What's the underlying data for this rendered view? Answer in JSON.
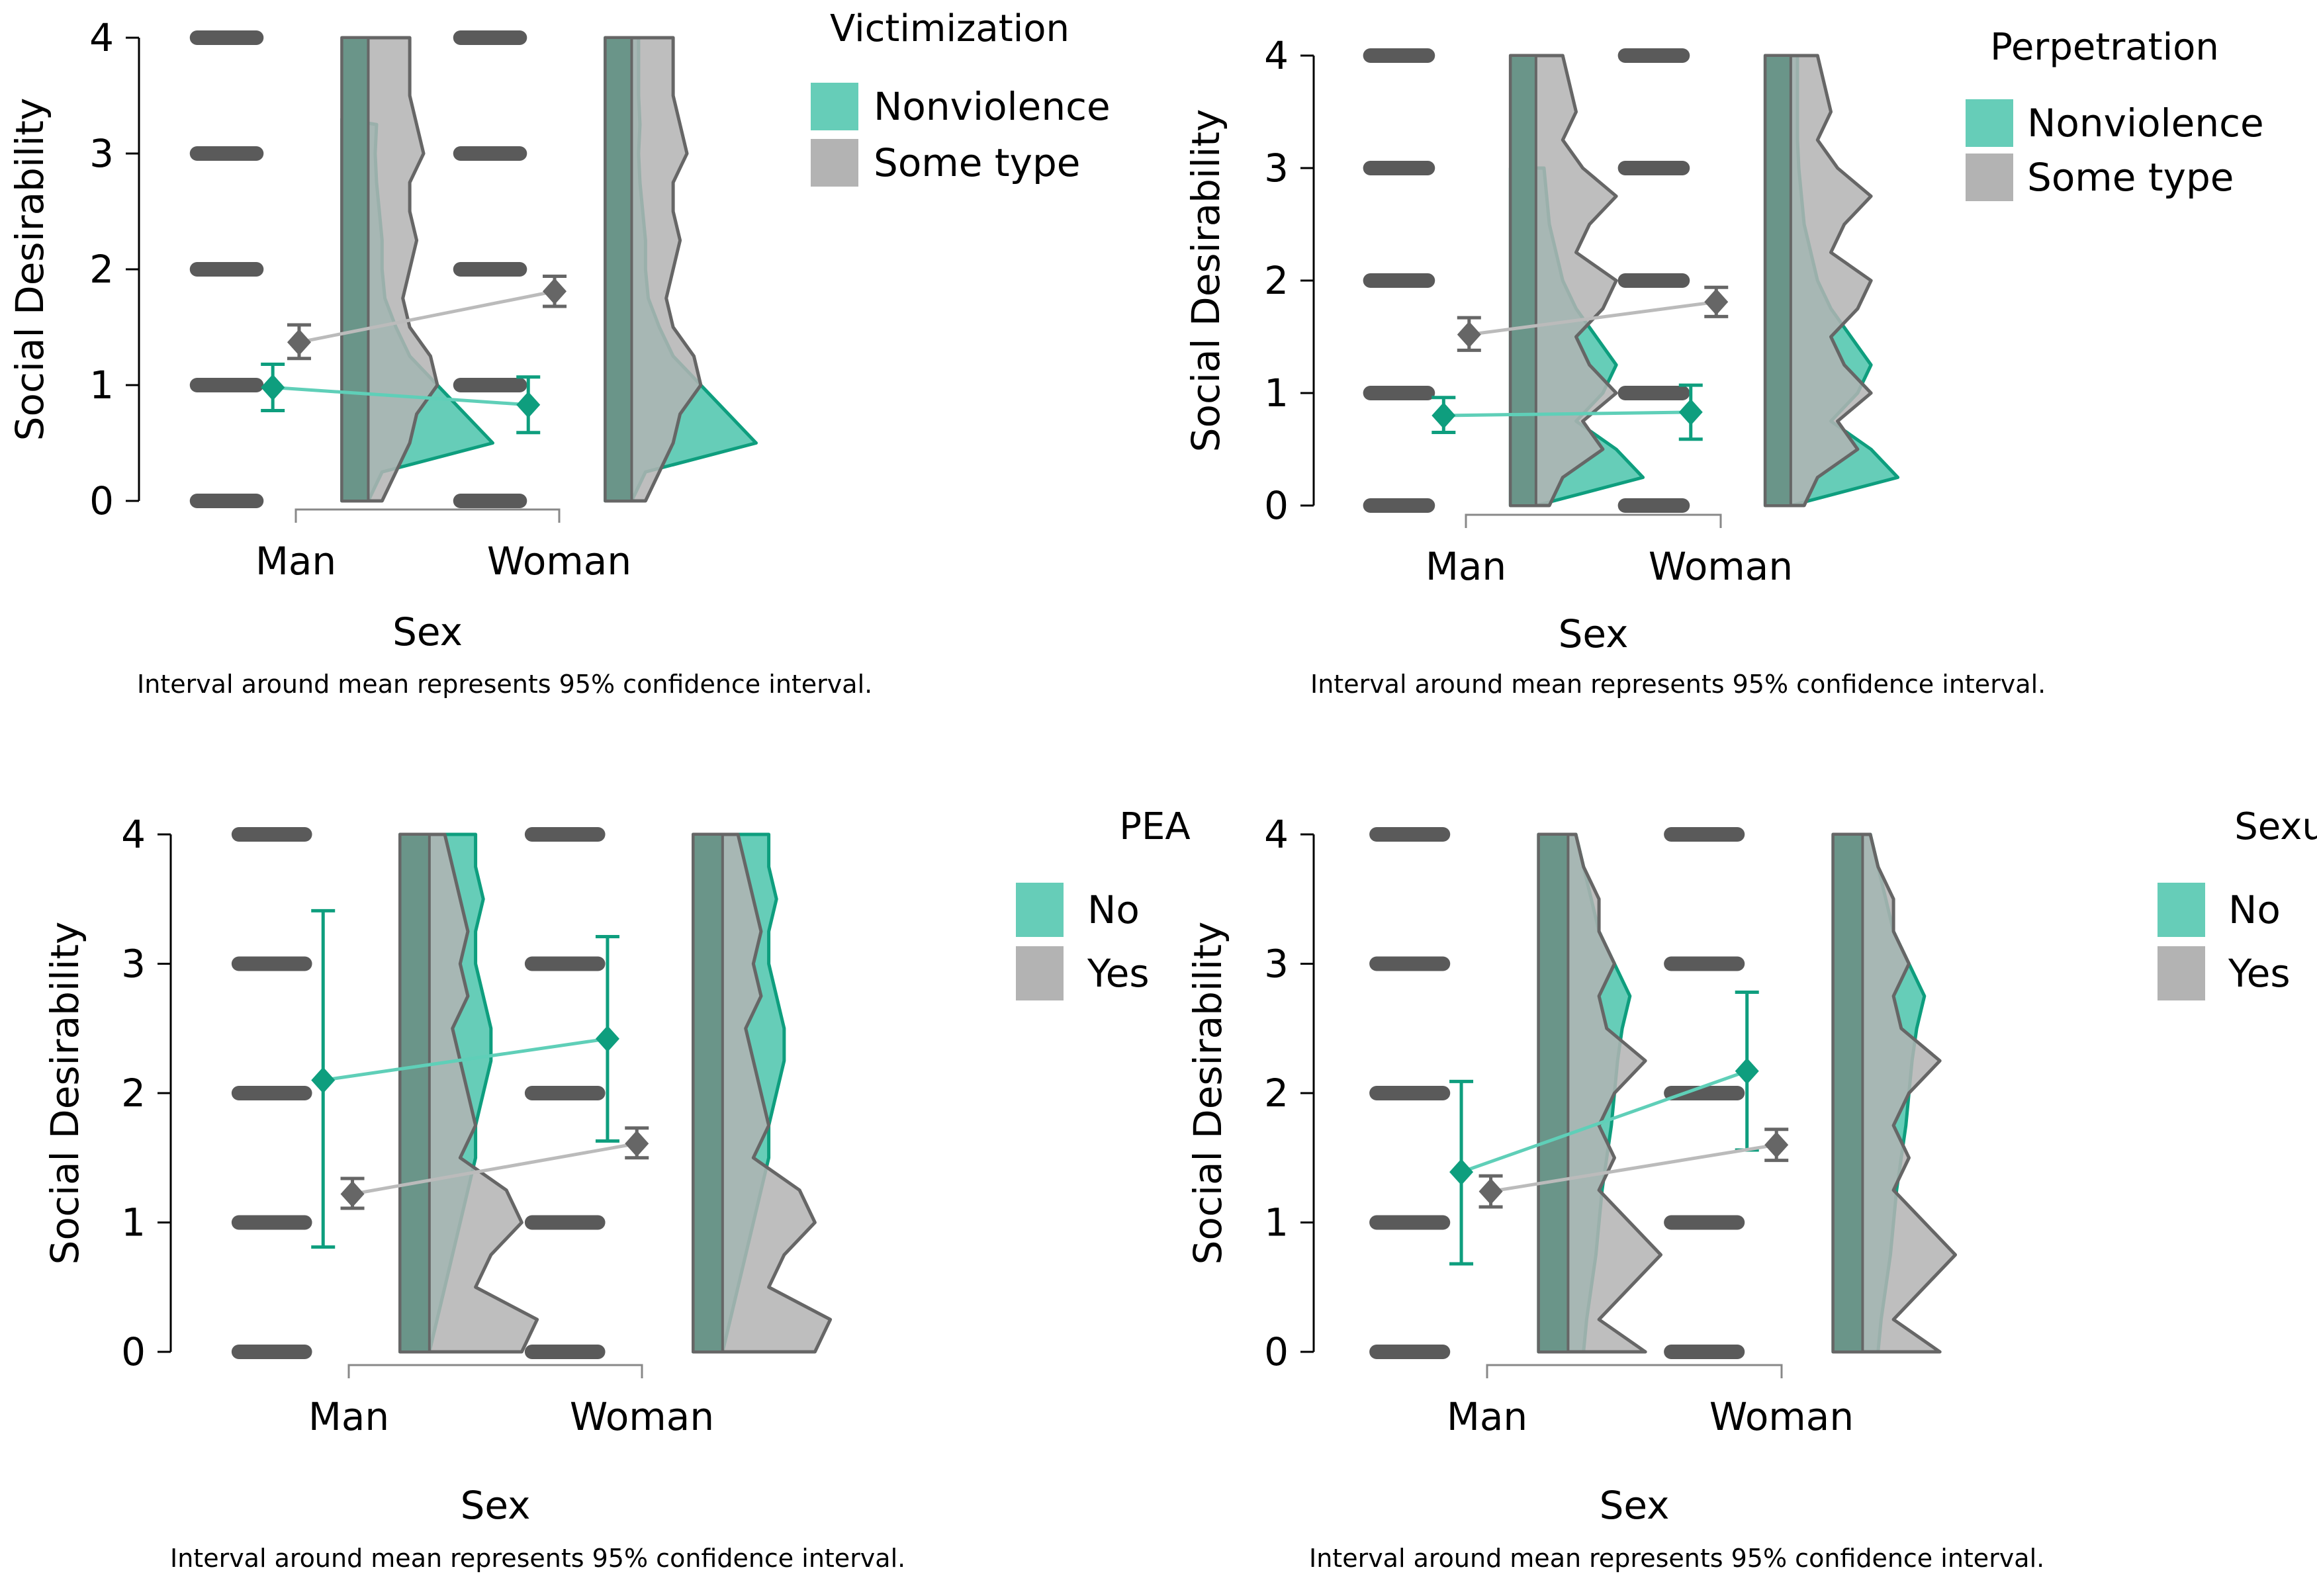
{
  "colors": {
    "teal": "#0e9e7e",
    "teal_light": "#66cdb8",
    "gray": "#666666",
    "gray_light": "#b3b3b3",
    "dark_fill": "#6a9589",
    "axis": "#000000"
  },
  "chart_data": [
    {
      "type": "raincloud",
      "xlabel": "Sex",
      "ylabel": "Social Desirability",
      "ylim": [
        0,
        4
      ],
      "yticks": [
        "0",
        "1",
        "2",
        "3",
        "4"
      ],
      "categories": [
        "Man",
        "Woman"
      ],
      "legend_title": "Victimization",
      "legend_position": "right",
      "caption": "Interval around mean represents 95% confidence interval.",
      "series": [
        {
          "name": "Nonviolence",
          "color": "teal",
          "means": [
            0.98,
            0.83
          ],
          "ci_low": [
            0.78,
            0.59
          ],
          "ci_high": [
            1.18,
            1.07
          ],
          "max": [
            3.3,
            4
          ],
          "density": [
            0.0,
            0.1,
            0.9,
            0.7,
            0.5,
            0.3,
            0.2,
            0.12,
            0.1,
            0.1,
            0.08,
            0.06,
            0.05,
            0.06,
            0.05,
            0.05,
            0.05
          ]
        },
        {
          "name": "Some type",
          "color": "gray",
          "means": [
            1.37,
            1.81
          ],
          "ci_low": [
            1.23,
            1.68
          ],
          "ci_high": [
            1.52,
            1.94
          ],
          "max": [
            4,
            4
          ],
          "density": [
            0.1,
            0.2,
            0.3,
            0.35,
            0.5,
            0.45,
            0.3,
            0.25,
            0.3,
            0.35,
            0.3,
            0.3,
            0.4,
            0.35,
            0.3,
            0.3,
            0.3
          ]
        }
      ],
      "raw_levels": [
        0,
        1,
        2,
        3,
        4
      ]
    },
    {
      "type": "raincloud",
      "xlabel": "Sex",
      "ylabel": "Social Desirability",
      "ylim": [
        0,
        4
      ],
      "yticks": [
        "0",
        "1",
        "2",
        "3",
        "4"
      ],
      "categories": [
        "Man",
        "Woman"
      ],
      "legend_title": "Perpetration",
      "legend_position": "right",
      "caption": "Interval around mean represents 95% confidence interval.",
      "series": [
        {
          "name": "Nonviolence",
          "color": "teal",
          "means": [
            0.8,
            0.83
          ],
          "ci_low": [
            0.65,
            0.59
          ],
          "ci_high": [
            0.96,
            1.07
          ],
          "max": [
            3,
            4
          ],
          "density": [
            0.0,
            0.8,
            0.6,
            0.3,
            0.5,
            0.6,
            0.45,
            0.3,
            0.2,
            0.15,
            0.1,
            0.08,
            0.06,
            0.05,
            0.05,
            0.05,
            0.05
          ]
        },
        {
          "name": "Some type",
          "color": "gray",
          "means": [
            1.52,
            1.81
          ],
          "ci_low": [
            1.38,
            1.68
          ],
          "ci_high": [
            1.67,
            1.94
          ],
          "max": [
            4,
            4
          ],
          "density": [
            0.1,
            0.2,
            0.5,
            0.35,
            0.6,
            0.4,
            0.3,
            0.5,
            0.6,
            0.3,
            0.4,
            0.6,
            0.35,
            0.2,
            0.3,
            0.25,
            0.2
          ]
        }
      ],
      "raw_levels": [
        0,
        1,
        2,
        3,
        4
      ]
    },
    {
      "type": "raincloud",
      "xlabel": "Sex",
      "ylabel": "Social Desirability",
      "ylim": [
        0,
        4
      ],
      "yticks": [
        "0",
        "1",
        "2",
        "3",
        "4"
      ],
      "categories": [
        "Man",
        "Woman"
      ],
      "legend_title": "PEA",
      "legend_position": "right",
      "caption": "Interval around mean represents 95% confidence interval.",
      "series": [
        {
          "name": "No",
          "color": "teal",
          "means": [
            2.1,
            2.42
          ],
          "ci_low": [
            0.81,
            1.63
          ],
          "ci_high": [
            3.41,
            3.21
          ],
          "max": [
            4,
            4
          ],
          "density": [
            0.0,
            0.05,
            0.1,
            0.15,
            0.2,
            0.25,
            0.3,
            0.3,
            0.35,
            0.4,
            0.4,
            0.35,
            0.3,
            0.3,
            0.35,
            0.3,
            0.3
          ]
        },
        {
          "name": "Yes",
          "color": "gray",
          "means": [
            1.22,
            1.61
          ],
          "ci_low": [
            1.11,
            1.5
          ],
          "ci_high": [
            1.34,
            1.73
          ],
          "max": [
            4,
            4
          ],
          "density": [
            0.6,
            0.7,
            0.3,
            0.4,
            0.6,
            0.5,
            0.2,
            0.3,
            0.25,
            0.2,
            0.15,
            0.25,
            0.2,
            0.25,
            0.2,
            0.15,
            0.1
          ]
        }
      ],
      "raw_levels": [
        0,
        1,
        2,
        3,
        4
      ]
    },
    {
      "type": "raincloud",
      "xlabel": "Sex",
      "ylabel": "Social Desirability",
      "ylim": [
        0,
        4
      ],
      "yticks": [
        "0",
        "1",
        "2",
        "3",
        "4"
      ],
      "categories": [
        "Man",
        "Woman"
      ],
      "legend_title": "Sexual",
      "legend_position": "right",
      "caption": "Interval around mean represents 95% confidence interval.",
      "series": [
        {
          "name": "No",
          "color": "teal",
          "means": [
            1.39,
            2.17
          ],
          "ci_low": [
            0.68,
            1.56
          ],
          "ci_high": [
            2.09,
            2.78
          ],
          "max": [
            4,
            4
          ],
          "density": [
            0.1,
            0.12,
            0.15,
            0.18,
            0.2,
            0.22,
            0.25,
            0.28,
            0.3,
            0.32,
            0.35,
            0.4,
            0.3,
            0.2,
            0.15,
            0.1,
            0.05
          ]
        },
        {
          "name": "Yes",
          "color": "gray",
          "means": [
            1.24,
            1.6
          ],
          "ci_low": [
            1.12,
            1.48
          ],
          "ci_high": [
            1.36,
            1.72
          ],
          "max": [
            4,
            4
          ],
          "density": [
            0.5,
            0.2,
            0.4,
            0.6,
            0.4,
            0.2,
            0.3,
            0.2,
            0.3,
            0.5,
            0.25,
            0.2,
            0.3,
            0.2,
            0.2,
            0.1,
            0.05
          ]
        }
      ],
      "raw_levels": [
        0,
        1,
        2,
        3,
        4
      ]
    }
  ]
}
